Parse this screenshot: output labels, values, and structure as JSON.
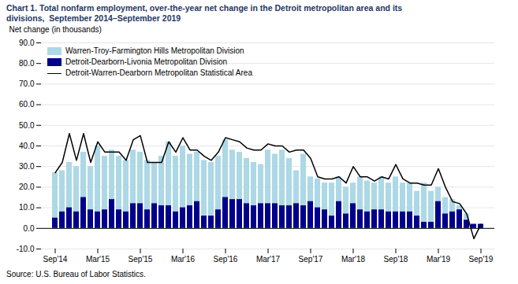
{
  "chart_data": {
    "type": "bar",
    "title": "Chart 1. Total nonfarm employment, over-the-year net change in the Detroit metropolitan area and its",
    "subtitle": "divisions,  September 2014–September 2019",
    "caption": "Source: U.S. Bureau of Labor Statistics.",
    "ylabel": "Net change (in thousands)",
    "categories": [
      "Sep'14",
      null,
      null,
      null,
      null,
      null,
      "Mar'15",
      null,
      null,
      null,
      null,
      null,
      "Sep'15",
      null,
      null,
      null,
      null,
      null,
      "Mar'16",
      null,
      null,
      null,
      null,
      null,
      "Sep'16",
      null,
      null,
      null,
      null,
      null,
      "Mar'17",
      null,
      null,
      null,
      null,
      null,
      "Sep'17",
      null,
      null,
      null,
      null,
      null,
      "Mar'18",
      null,
      null,
      null,
      null,
      null,
      "Sep'18",
      null,
      null,
      null,
      null,
      null,
      "Mar'19",
      null,
      null,
      null,
      null,
      null,
      "Sep'19"
    ],
    "series": [
      {
        "name": "Warren-Troy-Farmington Hills Metropolitan Division",
        "type": "bar",
        "color": "#ADD8E6",
        "values": [
          27,
          28,
          32,
          30,
          37,
          30,
          40,
          35,
          38,
          35,
          33,
          38,
          37,
          33,
          32,
          35,
          42,
          35,
          40,
          36,
          37,
          33,
          32,
          35,
          43,
          38,
          37,
          34,
          32,
          31,
          38,
          36,
          38,
          34,
          28,
          36,
          25,
          24,
          22,
          22,
          25,
          20,
          22,
          25,
          23,
          22,
          25,
          22,
          25,
          22,
          22,
          18,
          22,
          18,
          20,
          15,
          14,
          11,
          7,
          2,
          2
        ]
      },
      {
        "name": "Detroit-Dearborn-Livonia Metropolitan Division",
        "type": "bar",
        "color": "#00008B",
        "values": [
          5,
          8,
          10,
          8,
          15,
          9,
          8,
          9,
          14,
          9,
          8,
          12,
          12,
          9,
          12,
          11,
          11,
          8,
          10,
          11,
          13,
          6,
          6,
          9,
          15,
          14,
          14,
          12,
          11,
          12,
          12,
          12,
          11,
          11,
          12,
          11,
          13,
          10,
          9,
          6,
          13,
          7,
          12,
          9,
          8,
          9,
          9,
          8,
          8,
          8,
          8,
          6,
          3,
          3,
          13,
          7,
          8,
          9,
          4,
          2,
          2
        ]
      },
      {
        "name": "Detroit-Warren-Dearborn Metropolitan Statistical Area",
        "type": "line",
        "color": "#000000",
        "values": [
          27,
          32,
          46,
          33,
          46,
          32,
          42,
          37,
          37,
          37,
          33,
          43,
          45,
          32,
          32,
          32,
          42,
          37,
          44,
          38,
          38,
          35,
          33,
          37,
          44,
          43,
          42,
          39,
          38,
          38,
          41,
          40,
          40,
          37,
          38,
          38,
          34,
          25,
          24,
          24,
          25,
          22,
          30,
          25,
          25,
          23,
          25,
          24,
          31,
          24,
          22,
          22,
          21,
          21,
          29,
          20,
          13,
          12,
          7,
          -5,
          2
        ]
      }
    ],
    "ylim": [
      -10,
      90
    ],
    "yticks": [
      {
        "value": -10,
        "label": "-10.0"
      },
      {
        "value": 0,
        "label": "0.0"
      },
      {
        "value": 10,
        "label": "10.0"
      },
      {
        "value": 20,
        "label": "20.0"
      },
      {
        "value": 30,
        "label": "30.0"
      },
      {
        "value": 40,
        "label": "40.0"
      },
      {
        "value": 50,
        "label": "50.0"
      },
      {
        "value": 60,
        "label": "60.0"
      },
      {
        "value": 70,
        "label": "70.0"
      },
      {
        "value": 80,
        "label": "80.0"
      },
      {
        "value": 90,
        "label": "90.0"
      }
    ],
    "grid": true,
    "legend": "upper left",
    "stacked": false
  }
}
